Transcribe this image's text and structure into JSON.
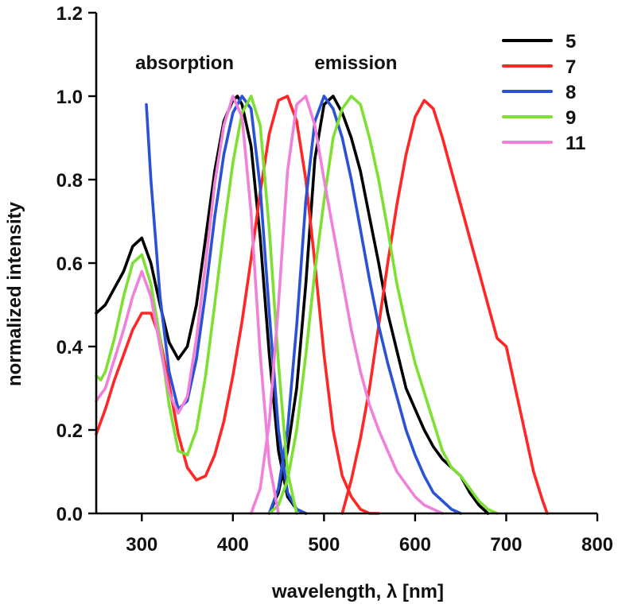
{
  "chart_data": {
    "type": "line",
    "title": "",
    "xlabel": "wavelength, λ [nm]",
    "ylabel": "normalized intensity",
    "xlim": [
      250,
      800
    ],
    "ylim": [
      0,
      1.2
    ],
    "x_ticks": [
      300,
      400,
      500,
      600,
      700,
      800
    ],
    "x_tick_labels": [
      "300",
      "400",
      "500",
      "600",
      "700",
      "800"
    ],
    "y_ticks": [
      0.0,
      0.2,
      0.4,
      0.6,
      0.8,
      1.0,
      1.2
    ],
    "y_tick_labels": [
      "0.0",
      "0.2",
      "0.4",
      "0.6",
      "0.8",
      "1.0",
      "1.2"
    ],
    "grid": false,
    "legend_position": "top-right",
    "annotations": [
      {
        "text": "absorption",
        "x": 347,
        "y": 1.08
      },
      {
        "text": "emission",
        "x": 535,
        "y": 1.08
      }
    ],
    "series": [
      {
        "name": "5",
        "color": "#000000",
        "kind": "absorption",
        "x": [
          250,
          260,
          270,
          280,
          290,
          300,
          310,
          320,
          330,
          340,
          350,
          360,
          370,
          380,
          390,
          400,
          405,
          410,
          420,
          430,
          440,
          450,
          460,
          470,
          480
        ],
        "y": [
          0.48,
          0.5,
          0.54,
          0.58,
          0.64,
          0.66,
          0.6,
          0.5,
          0.41,
          0.37,
          0.4,
          0.5,
          0.66,
          0.82,
          0.94,
          0.99,
          1.0,
          0.98,
          0.88,
          0.66,
          0.38,
          0.15,
          0.04,
          0.01,
          0.0
        ]
      },
      {
        "name": "5",
        "color": "#000000",
        "kind": "emission",
        "x": [
          440,
          450,
          460,
          470,
          480,
          490,
          500,
          510,
          520,
          530,
          540,
          550,
          560,
          570,
          580,
          590,
          600,
          610,
          620,
          630,
          640,
          650,
          660,
          670,
          680
        ],
        "y": [
          0.0,
          0.05,
          0.15,
          0.3,
          0.55,
          0.85,
          0.98,
          1.0,
          0.96,
          0.9,
          0.82,
          0.71,
          0.6,
          0.48,
          0.39,
          0.3,
          0.25,
          0.2,
          0.16,
          0.13,
          0.11,
          0.09,
          0.05,
          0.02,
          0.0
        ]
      },
      {
        "name": "7",
        "color": "#ff2626",
        "kind": "absorption",
        "x": [
          250,
          260,
          270,
          280,
          290,
          300,
          310,
          320,
          330,
          340,
          350,
          360,
          370,
          380,
          390,
          400,
          410,
          420,
          430,
          440,
          450,
          460,
          470,
          480,
          490,
          500,
          510,
          520,
          530,
          540,
          550,
          560
        ],
        "y": [
          0.19,
          0.25,
          0.32,
          0.38,
          0.44,
          0.48,
          0.48,
          0.42,
          0.31,
          0.19,
          0.11,
          0.08,
          0.09,
          0.14,
          0.22,
          0.33,
          0.46,
          0.61,
          0.77,
          0.91,
          0.99,
          1.0,
          0.94,
          0.8,
          0.6,
          0.38,
          0.2,
          0.09,
          0.04,
          0.01,
          0.0,
          0.0
        ]
      },
      {
        "name": "7",
        "color": "#ff2626",
        "kind": "emission",
        "x": [
          520,
          530,
          540,
          550,
          560,
          570,
          580,
          590,
          600,
          610,
          620,
          630,
          640,
          650,
          660,
          670,
          680,
          690,
          700,
          710,
          720,
          730,
          740,
          745
        ],
        "y": [
          0.0,
          0.08,
          0.18,
          0.3,
          0.45,
          0.6,
          0.74,
          0.86,
          0.95,
          0.99,
          0.97,
          0.9,
          0.82,
          0.74,
          0.66,
          0.58,
          0.5,
          0.42,
          0.4,
          0.3,
          0.2,
          0.1,
          0.03,
          0.0
        ]
      },
      {
        "name": "8",
        "color": "#2a52d4",
        "kind": "absorption",
        "x": [
          305,
          310,
          320,
          330,
          340,
          350,
          360,
          370,
          380,
          390,
          400,
          410,
          420,
          430,
          440,
          450,
          460,
          470,
          480
        ],
        "y": [
          0.98,
          0.8,
          0.52,
          0.34,
          0.25,
          0.27,
          0.37,
          0.53,
          0.71,
          0.86,
          0.96,
          1.0,
          0.97,
          0.78,
          0.48,
          0.2,
          0.05,
          0.01,
          0.0
        ]
      },
      {
        "name": "8",
        "color": "#2a52d4",
        "kind": "emission",
        "x": [
          440,
          450,
          460,
          470,
          480,
          490,
          500,
          510,
          520,
          530,
          540,
          550,
          560,
          570,
          580,
          590,
          600,
          610,
          620,
          630,
          640,
          650
        ],
        "y": [
          0.0,
          0.06,
          0.2,
          0.45,
          0.75,
          0.94,
          1.0,
          0.97,
          0.9,
          0.8,
          0.68,
          0.56,
          0.45,
          0.36,
          0.28,
          0.2,
          0.14,
          0.09,
          0.05,
          0.03,
          0.01,
          0.0
        ]
      },
      {
        "name": "9",
        "color": "#7ee032",
        "kind": "absorption",
        "x": [
          250,
          255,
          260,
          270,
          280,
          290,
          300,
          310,
          320,
          330,
          340,
          350,
          360,
          370,
          380,
          390,
          400,
          410,
          420,
          430,
          440,
          450,
          460,
          470
        ],
        "y": [
          0.33,
          0.32,
          0.34,
          0.42,
          0.52,
          0.6,
          0.62,
          0.55,
          0.42,
          0.26,
          0.15,
          0.14,
          0.2,
          0.33,
          0.5,
          0.68,
          0.84,
          0.96,
          1.0,
          0.93,
          0.68,
          0.36,
          0.1,
          0.0
        ]
      },
      {
        "name": "9",
        "color": "#7ee032",
        "kind": "emission",
        "x": [
          440,
          450,
          460,
          470,
          480,
          490,
          500,
          510,
          520,
          530,
          540,
          550,
          560,
          570,
          580,
          590,
          600,
          610,
          620,
          630,
          640,
          650,
          660,
          670,
          680,
          690
        ],
        "y": [
          0.0,
          0.02,
          0.08,
          0.2,
          0.38,
          0.58,
          0.75,
          0.9,
          0.97,
          1.0,
          0.98,
          0.9,
          0.8,
          0.68,
          0.55,
          0.45,
          0.36,
          0.29,
          0.22,
          0.15,
          0.11,
          0.09,
          0.06,
          0.03,
          0.01,
          0.0
        ]
      },
      {
        "name": "11",
        "color": "#f080d8",
        "kind": "absorption",
        "x": [
          250,
          260,
          270,
          280,
          290,
          300,
          310,
          320,
          330,
          340,
          350,
          360,
          370,
          380,
          390,
          400,
          410,
          420,
          430,
          440,
          450
        ],
        "y": [
          0.27,
          0.3,
          0.37,
          0.44,
          0.52,
          0.58,
          0.52,
          0.4,
          0.29,
          0.24,
          0.28,
          0.42,
          0.6,
          0.79,
          0.93,
          1.0,
          0.95,
          0.72,
          0.38,
          0.12,
          0.0
        ]
      },
      {
        "name": "11",
        "color": "#f080d8",
        "kind": "emission",
        "x": [
          420,
          430,
          440,
          450,
          460,
          470,
          480,
          490,
          500,
          510,
          520,
          530,
          540,
          550,
          560,
          570,
          580,
          590,
          600,
          610,
          620,
          630
        ],
        "y": [
          0.0,
          0.06,
          0.22,
          0.5,
          0.82,
          0.98,
          1.0,
          0.93,
          0.8,
          0.68,
          0.56,
          0.44,
          0.34,
          0.26,
          0.2,
          0.15,
          0.1,
          0.07,
          0.04,
          0.02,
          0.01,
          0.0
        ]
      }
    ],
    "legend": [
      {
        "label": "5",
        "color": "#000000"
      },
      {
        "label": "7",
        "color": "#ff2626"
      },
      {
        "label": "8",
        "color": "#2a52d4"
      },
      {
        "label": "9",
        "color": "#7ee032"
      },
      {
        "label": "11",
        "color": "#f080d8"
      }
    ]
  }
}
